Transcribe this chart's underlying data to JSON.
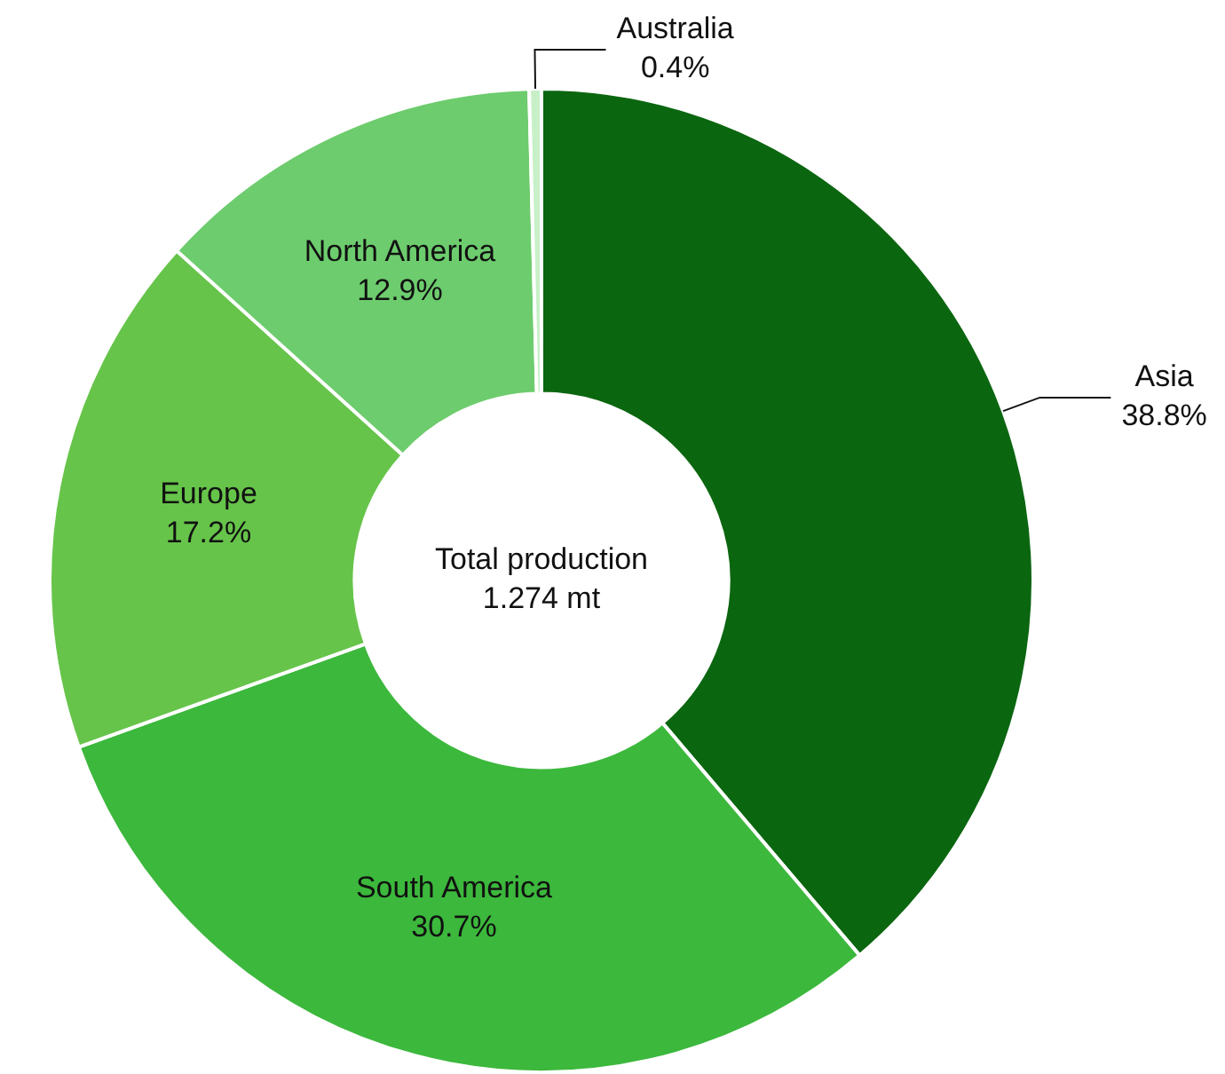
{
  "chart_data": {
    "type": "donut",
    "categories": [
      "Asia",
      "South America",
      "Europe",
      "North America",
      "Australia"
    ],
    "values": [
      38.8,
      30.7,
      17.2,
      12.9,
      0.4
    ],
    "value_labels": [
      "38.8%",
      "30.7%",
      "17.2%",
      "12.9%",
      "0.4%"
    ],
    "colors": [
      "#0b6610",
      "#3cb83c",
      "#66c44a",
      "#6dcc6d",
      "#c8f0c8"
    ],
    "annotations": [
      "Total production",
      "1.274 mt"
    ],
    "legend": false
  }
}
